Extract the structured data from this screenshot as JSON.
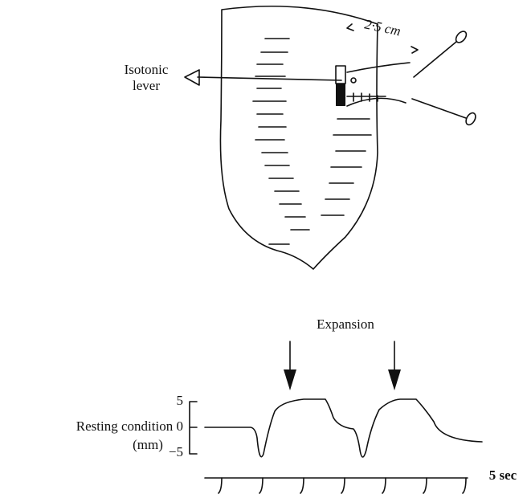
{
  "lever_label": [
    "Isotonic",
    "lever"
  ],
  "distance_label": "2·5 cm",
  "event_label": "Expansion",
  "trace_axis": {
    "title": [
      "Resting condition",
      "(mm)"
    ],
    "ticks": [
      "5",
      "0",
      "−5"
    ]
  },
  "time_scale": "5 sec"
}
